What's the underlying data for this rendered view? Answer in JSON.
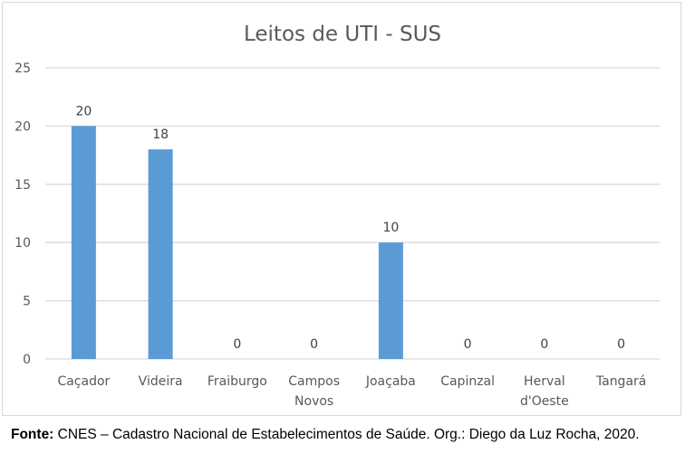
{
  "chart_data": {
    "type": "bar",
    "title": "Leitos de UTI - SUS",
    "categories": [
      [
        "Caçador"
      ],
      [
        "Videira"
      ],
      [
        "Fraiburgo"
      ],
      [
        "Campos",
        "Novos"
      ],
      [
        "Joaçaba"
      ],
      [
        "Capinzal"
      ],
      [
        "Herval",
        "d'Oeste"
      ],
      [
        "Tangará"
      ]
    ],
    "values": [
      20,
      18,
      0,
      0,
      10,
      0,
      0,
      0
    ],
    "data_labels": [
      "20",
      "18",
      "0",
      "0",
      "10",
      "0",
      "0",
      "0"
    ],
    "ylim": [
      0,
      25
    ],
    "yticks": [
      0,
      5,
      10,
      15,
      20,
      25
    ],
    "xlabel": "",
    "ylabel": "",
    "grid": true,
    "legend": "none",
    "bar_color": "#5b9bd5",
    "grid_color": "#d9d9d9",
    "text_color": "#595959"
  },
  "caption": {
    "label": "Fonte:",
    "text": " CNES – Cadastro Nacional de Estabelecimentos de Saúde. Org.: Diego da Luz Rocha, 2020."
  }
}
